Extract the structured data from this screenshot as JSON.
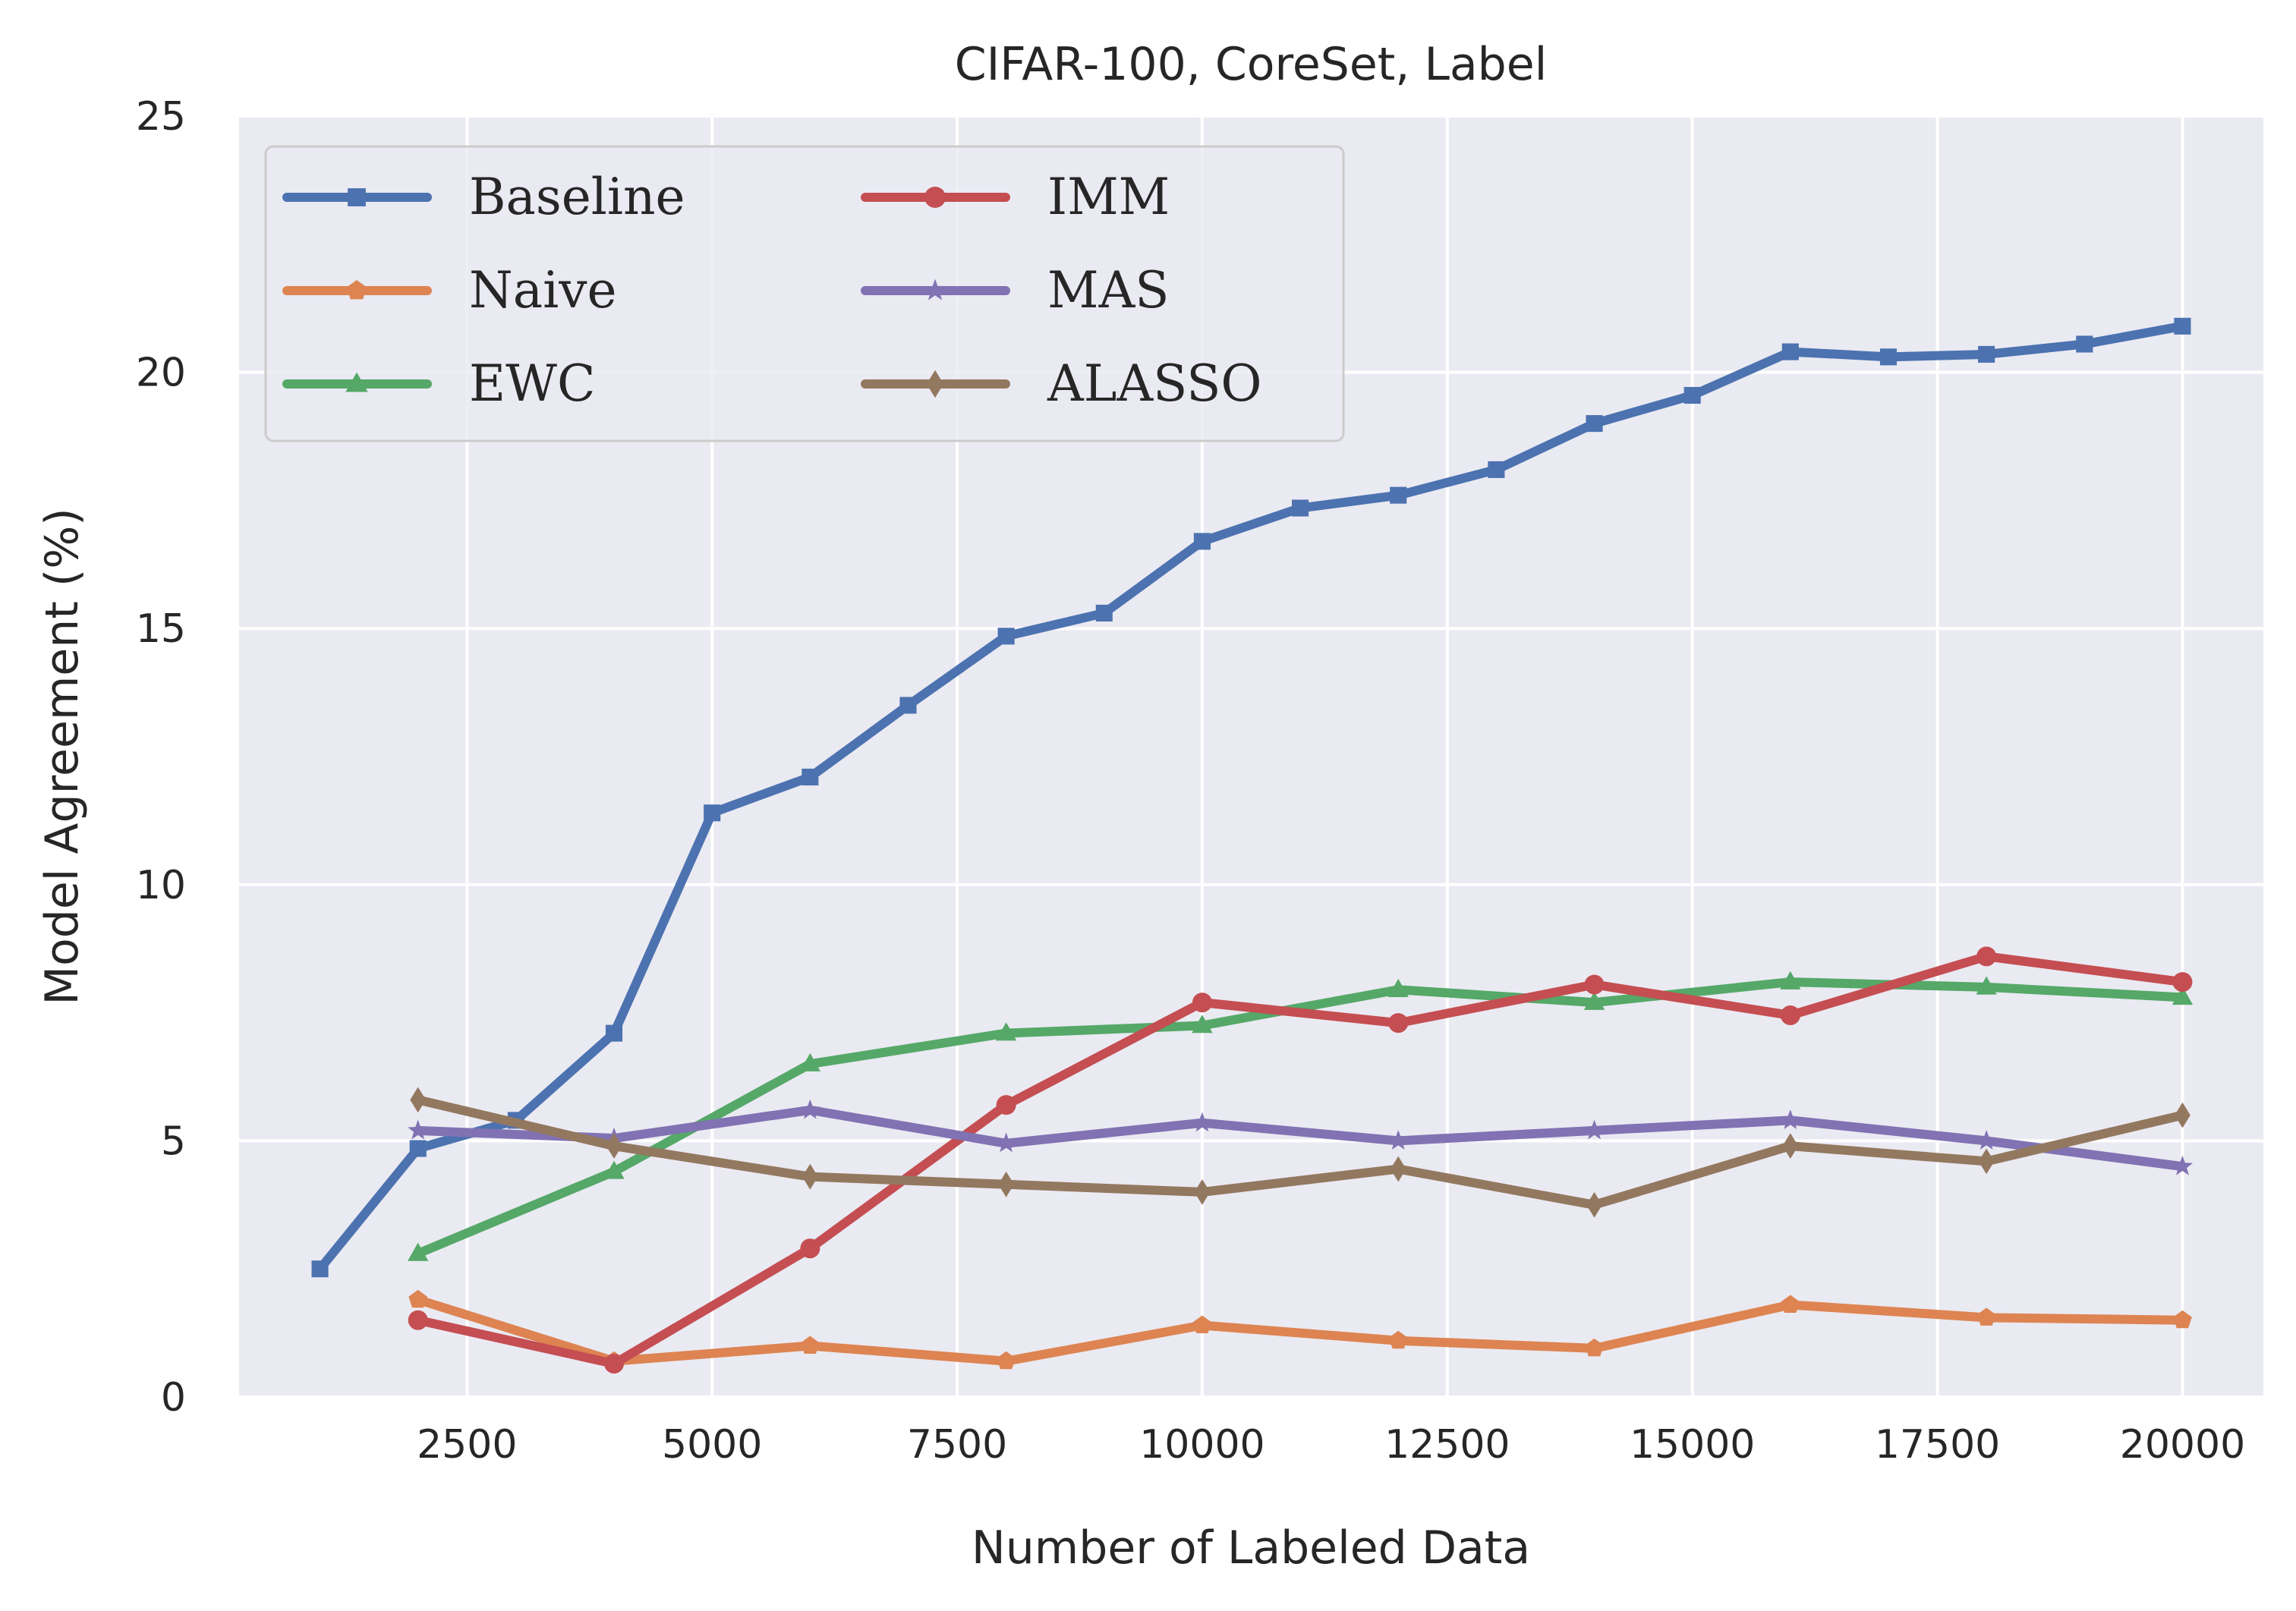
{
  "chart_data": {
    "type": "line",
    "title": "CIFAR-100, CoreSet, Label",
    "xlabel": "Number of Labeled Data",
    "ylabel": "Model Agreement (%)",
    "xlim": [
      1000,
      20000
    ],
    "ylim": [
      0,
      25
    ],
    "xticks": [
      "2500",
      "5000",
      "7500",
      "10000",
      "12500",
      "15000",
      "17500",
      "20000"
    ],
    "yticks": [
      "0",
      "5",
      "10",
      "15",
      "20",
      "25"
    ],
    "grid": true,
    "legend_position": "top-left",
    "legend_columns": 2,
    "background": "#eaeaf2",
    "series": [
      {
        "name": "Baseline",
        "color": "#4c72b0",
        "marker": "square",
        "x": [
          1000,
          2000,
          3000,
          4000,
          5000,
          6000,
          7000,
          8000,
          9000,
          10000,
          11000,
          12000,
          13000,
          14000,
          15000,
          16000,
          17000,
          18000,
          19000,
          20000
        ],
        "y": [
          2.5,
          4.85,
          5.4,
          7.1,
          11.4,
          12.1,
          13.5,
          14.85,
          15.3,
          16.7,
          17.35,
          17.6,
          18.1,
          19.0,
          19.55,
          20.4,
          20.3,
          20.35,
          20.55,
          20.9
        ]
      },
      {
        "name": "Naive",
        "color": "#dd8452",
        "marker": "pentagon",
        "x": [
          2000,
          4000,
          6000,
          8000,
          10000,
          12000,
          14000,
          16000,
          18000,
          20000
        ],
        "y": [
          1.9,
          0.7,
          1.0,
          0.7,
          1.4,
          1.1,
          0.95,
          1.8,
          1.55,
          1.5
        ]
      },
      {
        "name": "EWC",
        "color": "#55a868",
        "marker": "triangle",
        "x": [
          2000,
          4000,
          6000,
          8000,
          10000,
          12000,
          14000,
          16000,
          18000,
          20000
        ],
        "y": [
          2.8,
          4.4,
          6.5,
          7.1,
          7.25,
          7.95,
          7.7,
          8.1,
          8.0,
          7.8
        ]
      },
      {
        "name": "IMM",
        "color": "#c44e52",
        "marker": "circle",
        "x": [
          2000,
          4000,
          6000,
          8000,
          10000,
          12000,
          14000,
          16000,
          18000,
          20000
        ],
        "y": [
          1.5,
          0.65,
          2.9,
          5.7,
          7.7,
          7.3,
          8.05,
          7.45,
          8.6,
          8.1
        ]
      },
      {
        "name": "MAS",
        "color": "#8172b3",
        "marker": "star",
        "x": [
          2000,
          4000,
          6000,
          8000,
          10000,
          12000,
          14000,
          16000,
          18000,
          20000
        ],
        "y": [
          5.2,
          5.05,
          5.6,
          4.95,
          5.35,
          5.0,
          5.2,
          5.4,
          5.0,
          4.5
        ]
      },
      {
        "name": "ALASSO",
        "color": "#937860",
        "marker": "diamond",
        "x": [
          2000,
          4000,
          6000,
          8000,
          10000,
          12000,
          14000,
          16000,
          18000,
          20000
        ],
        "y": [
          5.8,
          4.9,
          4.3,
          4.15,
          4.0,
          4.45,
          3.75,
          4.9,
          4.6,
          5.5
        ]
      }
    ]
  }
}
